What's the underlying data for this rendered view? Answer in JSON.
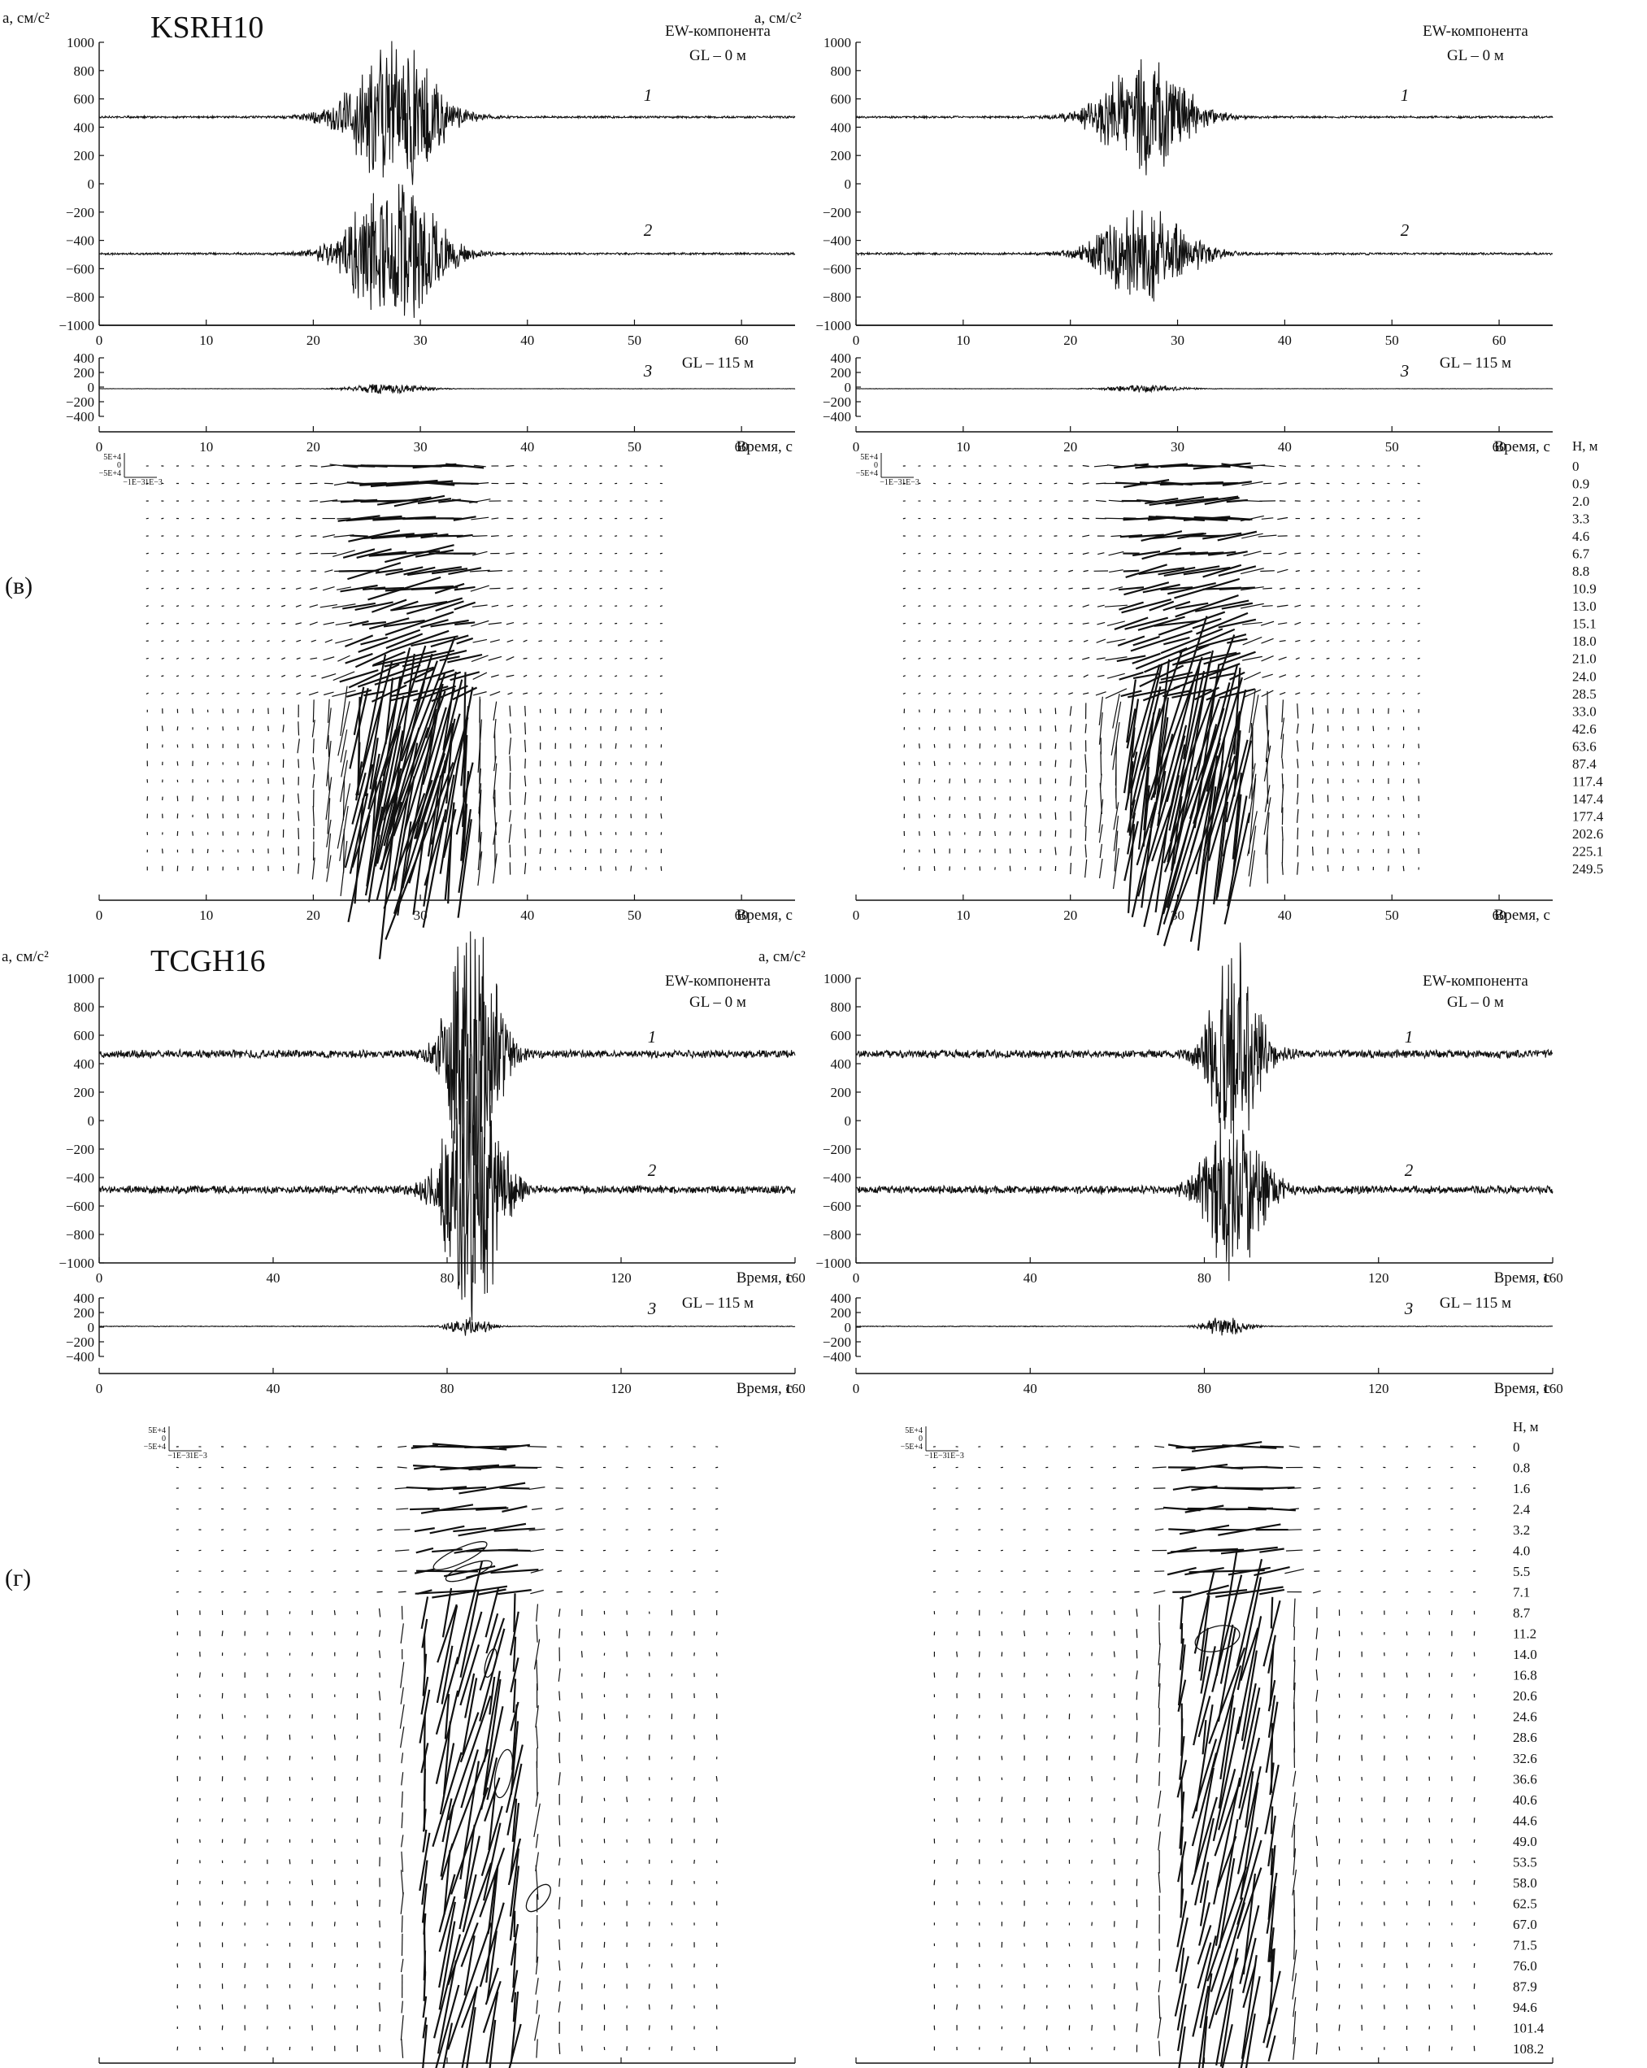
{
  "labels": {
    "ylabel": "a, см/с²",
    "xlabel": "Время, с",
    "component": "EW-компонента",
    "gl0": "GL – 0 м",
    "gl115": "GL – 115 м",
    "depth_label": "H, м",
    "station_v": "KSRH10",
    "station_g": "TCGH16",
    "panel_v": "(в)",
    "panel_g": "(г)",
    "trace_ids": [
      "1",
      "2",
      "3"
    ],
    "scale_text": [
      "5E+4",
      "0",
      "−5E+4",
      "−1E−3",
      "1E−3"
    ]
  },
  "ticks": {
    "accel_big": [
      "1000",
      "800",
      "600",
      "400",
      "200",
      "0",
      "−200",
      "−400",
      "−600",
      "−800",
      "−1000"
    ],
    "accel_small": [
      "400",
      "200",
      "0",
      "−200",
      "−400"
    ],
    "time_65": [
      "0",
      "10",
      "20",
      "30",
      "40",
      "50",
      "60"
    ],
    "time_160": [
      "0",
      "40",
      "80",
      "120",
      "160"
    ]
  },
  "depths_v": [
    "0",
    "0.9",
    "2.0",
    "3.3",
    "4.6",
    "6.7",
    "8.8",
    "10.9",
    "13.0",
    "15.1",
    "18.0",
    "21.0",
    "24.0",
    "28.5",
    "33.0",
    "42.6",
    "63.6",
    "87.4",
    "117.4",
    "147.4",
    "177.4",
    "202.6",
    "225.1",
    "249.5"
  ],
  "depths_g": [
    "0",
    "0.8",
    "1.6",
    "2.4",
    "3.2",
    "4.0",
    "5.5",
    "7.1",
    "8.7",
    "11.2",
    "14.0",
    "16.8",
    "20.6",
    "24.6",
    "28.6",
    "32.6",
    "36.6",
    "40.6",
    "44.6",
    "49.0",
    "53.5",
    "58.0",
    "62.5",
    "67.0",
    "71.5",
    "76.0",
    "87.9",
    "94.6",
    "101.4",
    "108.2"
  ],
  "chart_data": [
    {
      "type": "line",
      "station": "KSRH10",
      "column": "left",
      "series": [
        {
          "name": "1",
          "peak_time": 27.5,
          "peak_abs": 560
        },
        {
          "name": "2",
          "peak_time": 27.5,
          "peak_abs": 560
        },
        {
          "name": "3",
          "peak_time": 27,
          "peak_abs": 80
        }
      ],
      "xlim": [
        0,
        65
      ],
      "ylim": [
        -1000,
        1000
      ]
    },
    {
      "type": "line",
      "station": "KSRH10",
      "column": "right",
      "series": [
        {
          "name": "1",
          "peak_time": 27,
          "peak_abs": 420
        },
        {
          "name": "2",
          "peak_time": 27,
          "peak_abs": 360
        },
        {
          "name": "3",
          "peak_time": 27,
          "peak_abs": 60
        }
      ],
      "xlim": [
        0,
        65
      ],
      "ylim": [
        -1000,
        1000
      ]
    },
    {
      "type": "line",
      "station": "TCGH16",
      "column": "left",
      "series": [
        {
          "name": "1",
          "peak_time": 86,
          "peak_abs": 1150
        },
        {
          "name": "2",
          "peak_time": 86,
          "peak_abs": 1000
        },
        {
          "name": "3",
          "peak_time": 85,
          "peak_abs": 140
        }
      ],
      "xlim": [
        0,
        160
      ],
      "ylim": [
        -1000,
        1000
      ]
    },
    {
      "type": "line",
      "station": "TCGH16",
      "column": "right",
      "series": [
        {
          "name": "1",
          "peak_time": 87,
          "peak_abs": 800
        },
        {
          "name": "2",
          "peak_time": 87,
          "peak_abs": 700
        },
        {
          "name": "3",
          "peak_time": 85,
          "peak_abs": 160
        }
      ],
      "xlim": [
        0,
        160
      ],
      "ylim": [
        -1000,
        1000
      ]
    }
  ]
}
